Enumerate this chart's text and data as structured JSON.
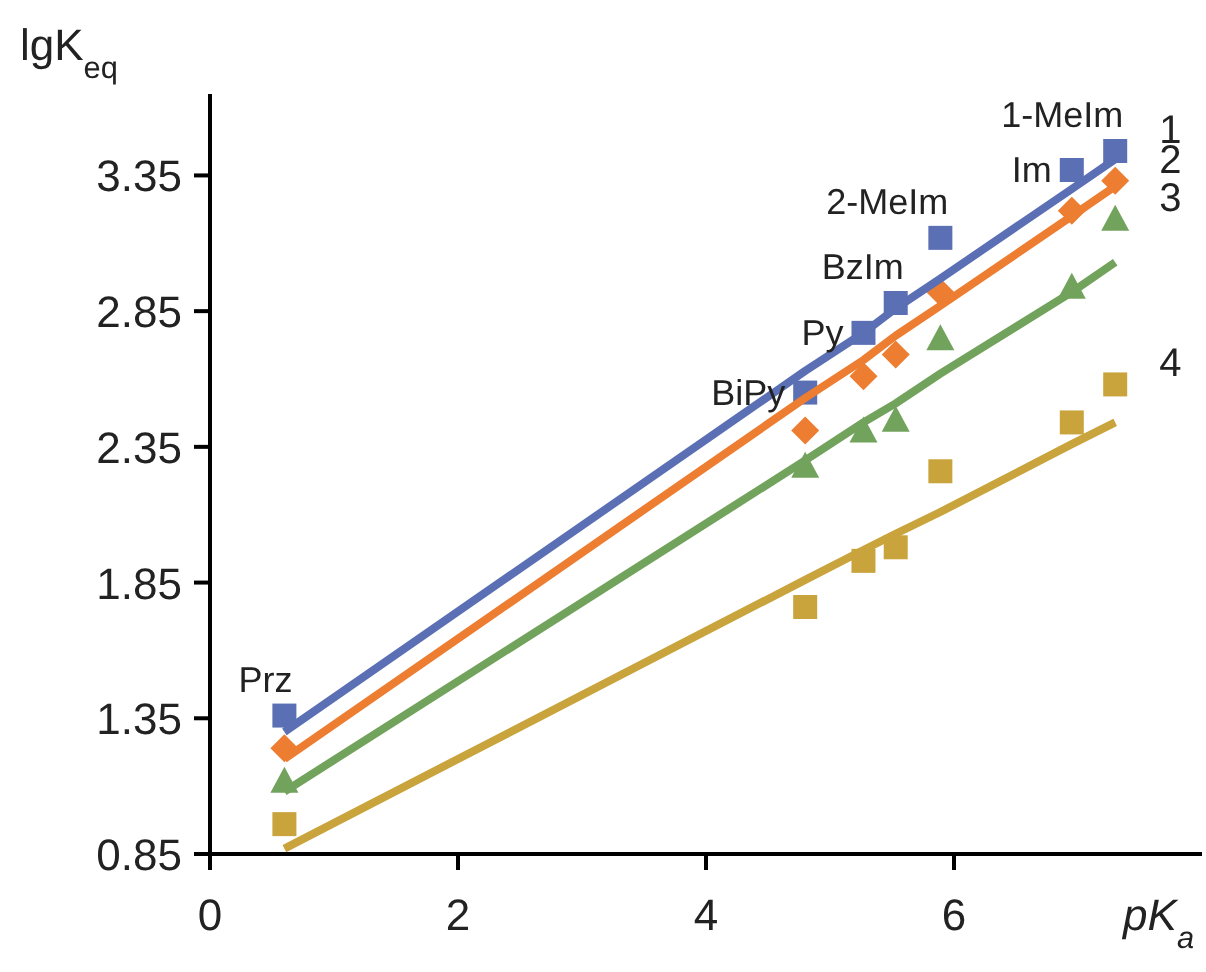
{
  "chart_data": {
    "type": "scatter",
    "xlabel": "pK$_{a}$",
    "ylabel": "lgK$_{eq}$",
    "xlim": [
      0,
      8
    ],
    "xticks": [
      0,
      2,
      4,
      6
    ],
    "ylim": [
      0.85,
      3.65
    ],
    "yticks": [
      0.85,
      1.35,
      1.85,
      2.35,
      2.85,
      3.35
    ],
    "grid": false,
    "x": [
      0.6,
      4.8,
      5.27,
      5.53,
      5.89,
      6.95,
      7.3
    ],
    "series": [
      {
        "name": "1",
        "marker": "square",
        "color": "#5a6fb4",
        "values": [
          1.36,
          2.55,
          2.77,
          2.88,
          3.12,
          3.37,
          3.44
        ]
      },
      {
        "name": "2",
        "marker": "diamond",
        "color": "#ed7d31",
        "values": [
          1.24,
          2.41,
          2.61,
          2.69,
          2.92,
          3.22,
          3.33
        ]
      },
      {
        "name": "3",
        "marker": "triangle",
        "color": "#72a35c",
        "values": [
          1.12,
          2.28,
          2.41,
          2.45,
          2.75,
          2.94,
          3.19
        ]
      },
      {
        "name": "4",
        "marker": "square",
        "color": "#c9a43c",
        "values": [
          0.96,
          1.76,
          1.93,
          1.98,
          2.26,
          2.44,
          2.58
        ]
      },
      {
        "type": "line",
        "color": "#5a6fb4",
        "values": [
          1.3,
          2.63,
          2.77,
          2.86,
          2.97,
          3.3,
          3.41
        ]
      },
      {
        "type": "line",
        "color": "#ed7d31",
        "values": [
          1.2,
          2.53,
          2.67,
          2.76,
          2.87,
          3.2,
          3.31
        ]
      },
      {
        "type": "line",
        "color": "#72a35c",
        "values": [
          1.08,
          2.3,
          2.44,
          2.51,
          2.62,
          2.92,
          3.03
        ]
      },
      {
        "type": "line",
        "color": "#c9a43c",
        "values": [
          0.87,
          1.86,
          1.97,
          2.03,
          2.11,
          2.36,
          2.44
        ]
      }
    ],
    "annotations": [
      {
        "text": "Prz",
        "x": 0.6,
        "y": 1.36
      },
      {
        "text": "BiPy",
        "x": 4.8,
        "y": 2.55
      },
      {
        "text": "Py",
        "x": 5.27,
        "y": 2.77
      },
      {
        "text": "BzIm",
        "x": 5.53,
        "y": 2.88
      },
      {
        "text": "2-MeIm",
        "x": 5.89,
        "y": 3.12
      },
      {
        "text": "Im",
        "x": 6.95,
        "y": 3.37
      },
      {
        "text": "1-MeIm",
        "x": 7.3,
        "y": 3.44
      }
    ]
  }
}
